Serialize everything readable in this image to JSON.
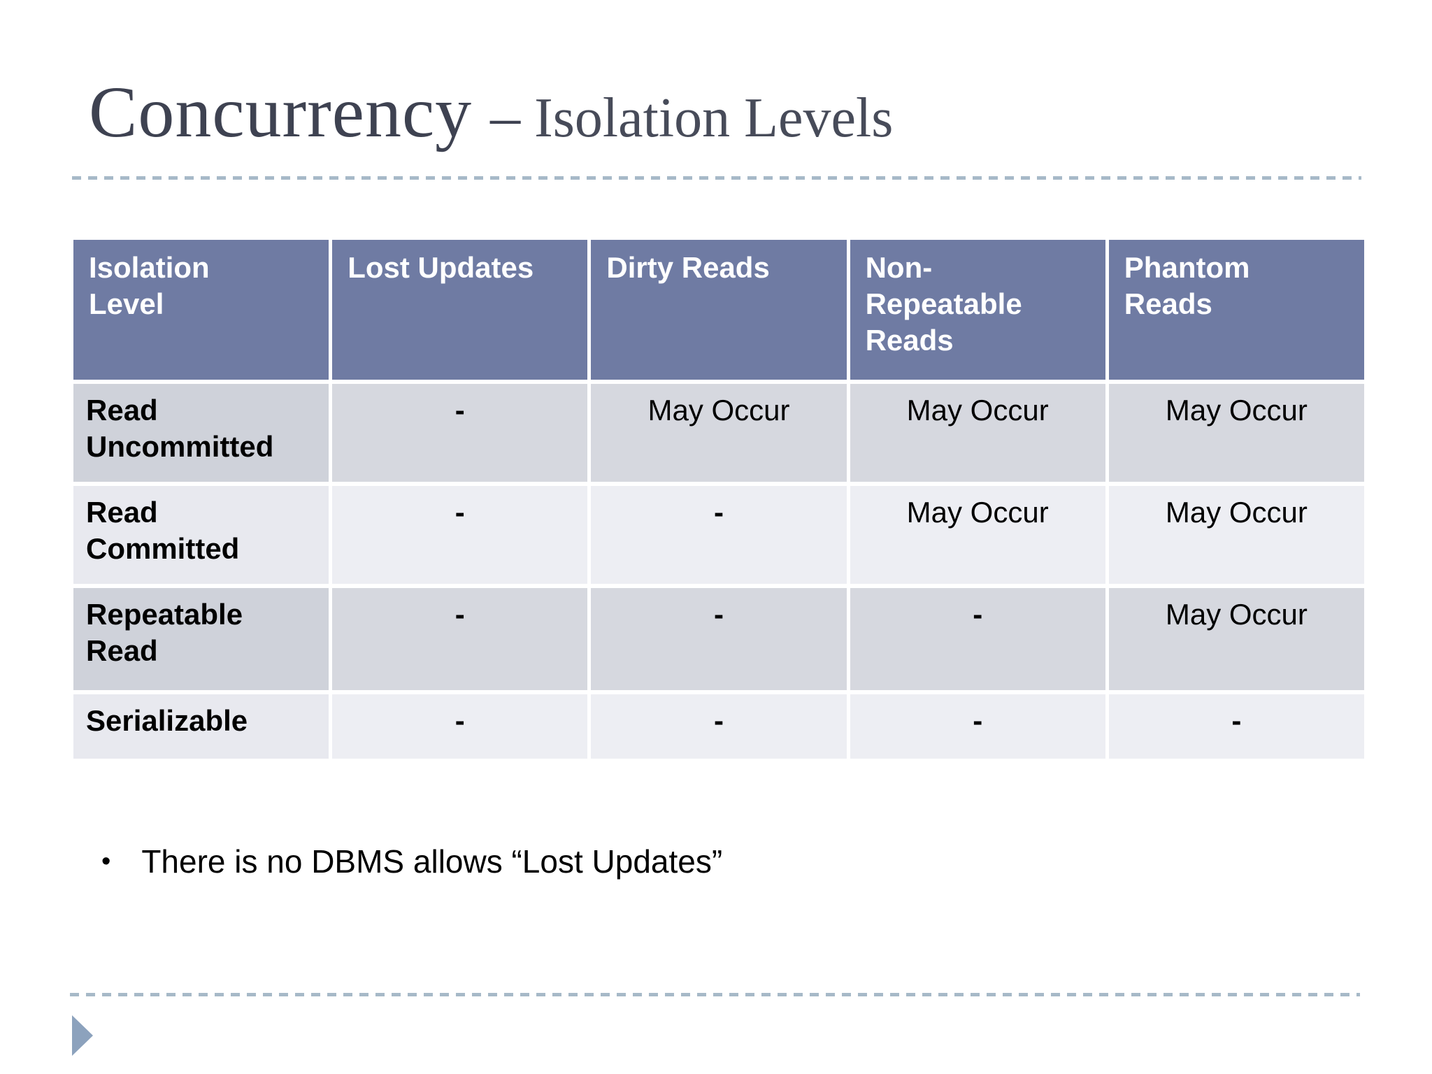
{
  "slide": {
    "title": {
      "main": "Concurrency",
      "dash": "–",
      "sub": "Isolation Levels"
    },
    "table": {
      "columns": [
        "Isolation\nLevel",
        "Lost Updates",
        "Dirty Reads",
        "Non-\nRepeatable\nReads",
        "Phantom\nReads"
      ],
      "rows": [
        {
          "label": "Read\nUncommitted",
          "cells": [
            "-",
            "May Occur",
            "May Occur",
            "May Occur"
          ]
        },
        {
          "label": "Read\nCommitted",
          "cells": [
            "-",
            "-",
            "May Occur",
            "May Occur"
          ]
        },
        {
          "label": "Repeatable\nRead",
          "cells": [
            "-",
            "-",
            "-",
            "May Occur"
          ]
        },
        {
          "label": "Serializable",
          "cells": [
            "-",
            "-",
            "-",
            "-"
          ]
        }
      ]
    },
    "bullet": {
      "marker": "•",
      "text": "There is no DBMS allows “Lost Updates”"
    },
    "colors": {
      "title_main": "#3e4251",
      "title_sub": "#474b59",
      "rule_dash": "#a7b9c8",
      "header_bg": "#6f7ba3",
      "header_text": "#ffffff",
      "band_dark_label_bg": "#cfd2da",
      "band_dark_value_bg": "#d6d8df",
      "band_light_label_bg": "#e8e9ef",
      "band_light_value_bg": "#edeef3",
      "pointer_triangle": "#8ca2bd"
    }
  }
}
